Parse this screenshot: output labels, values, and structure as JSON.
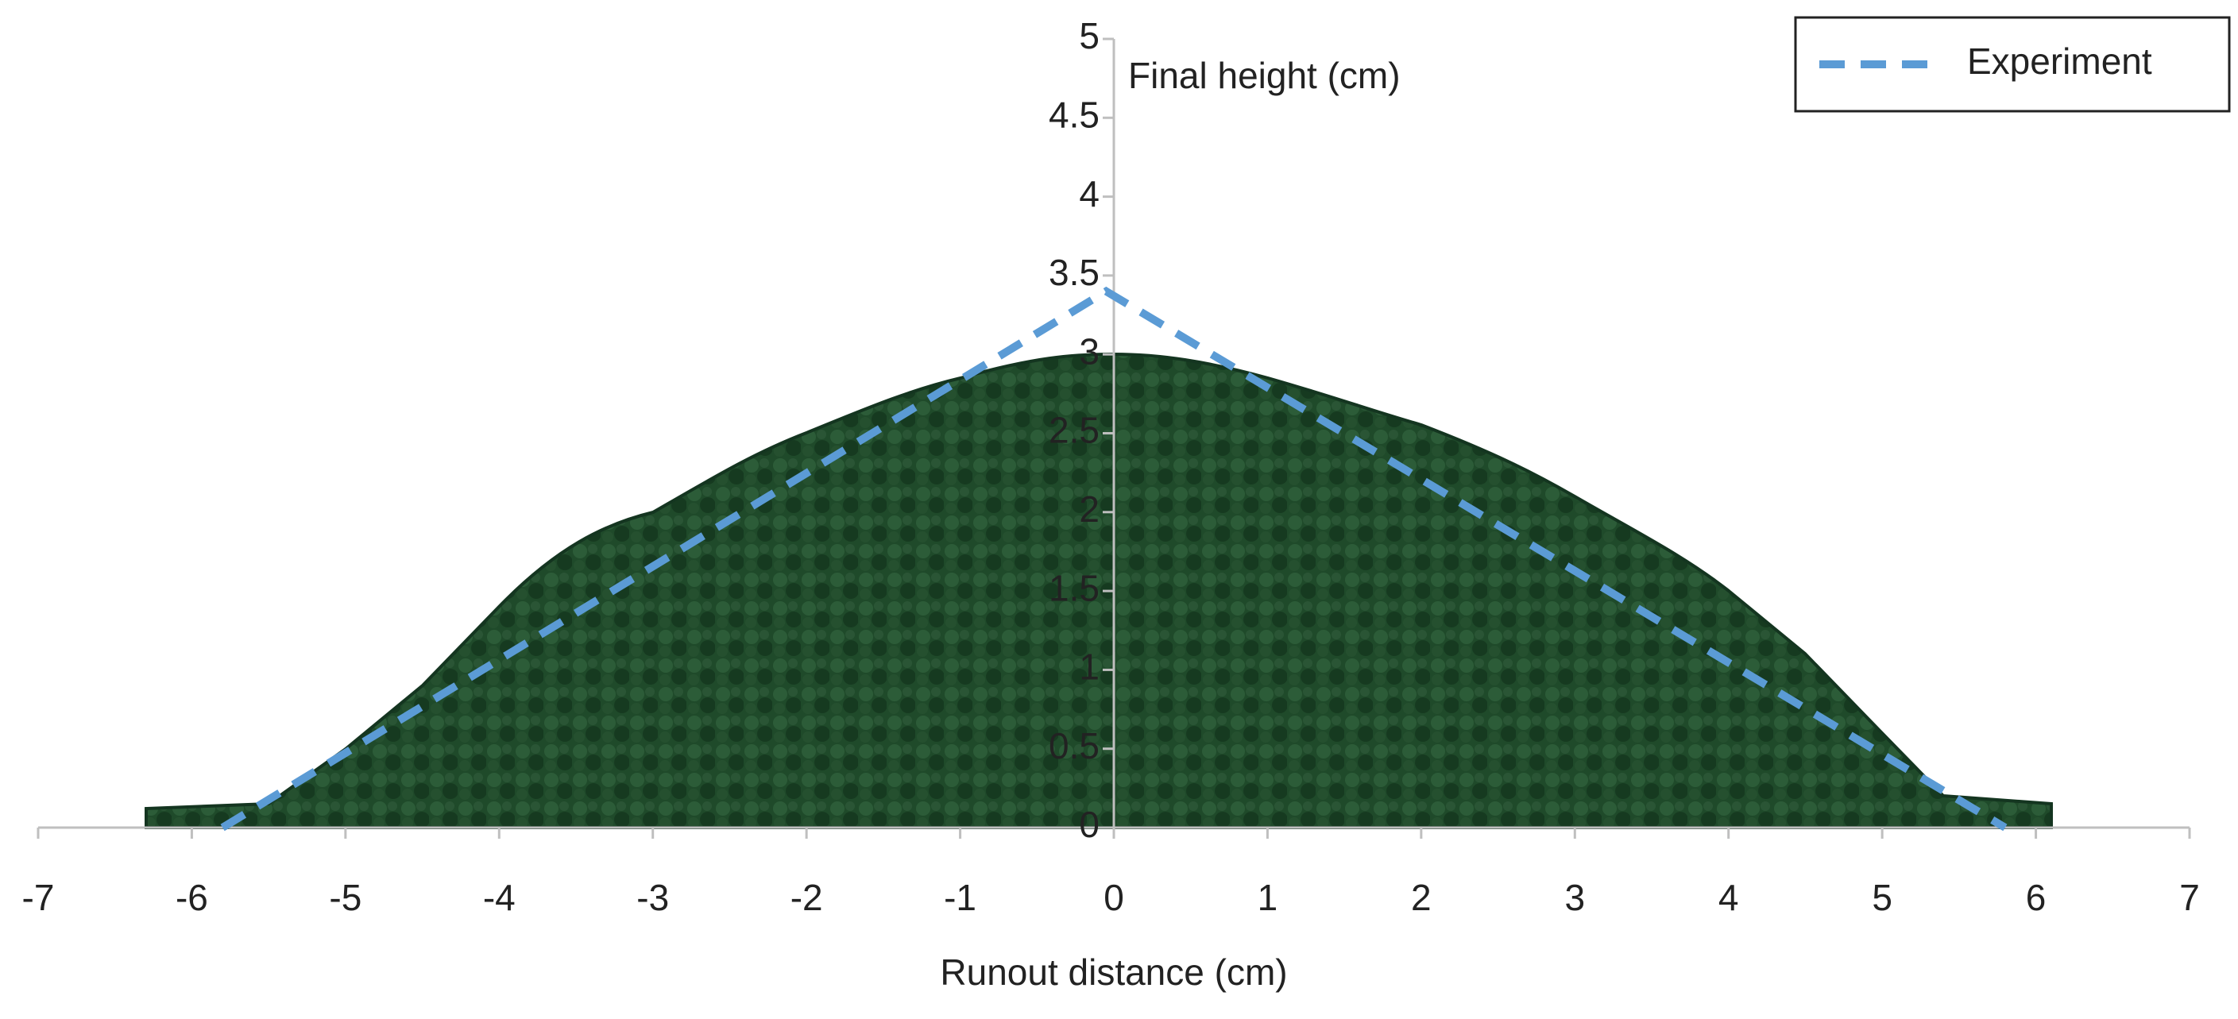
{
  "chart_data": {
    "type": "line",
    "x_label": "Runout distance (cm)",
    "y_label": "Final height (cm)",
    "xlim": [
      -7,
      7
    ],
    "xticks": [
      -7,
      -6,
      -5,
      -4,
      -3,
      -2,
      -1,
      0,
      1,
      2,
      3,
      4,
      5,
      6,
      7
    ],
    "ylim": [
      0,
      5
    ],
    "yticks": [
      0,
      0.5,
      1,
      1.5,
      2,
      2.5,
      3,
      3.5,
      4,
      4.5,
      5
    ],
    "x": [
      -5.8,
      -0.05,
      5.8
    ],
    "series": [
      {
        "name": "Experiment",
        "color": "#5b9bd5",
        "values": [
          0,
          3.4,
          0
        ]
      }
    ],
    "legend": "top-right"
  }
}
